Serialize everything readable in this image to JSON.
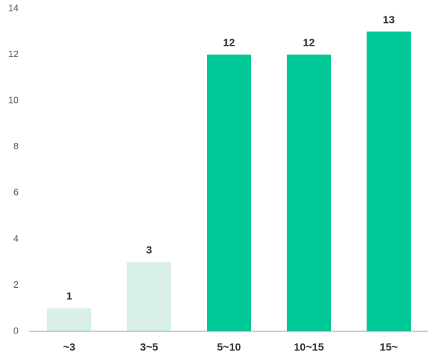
{
  "chart_data": {
    "type": "bar",
    "categories": [
      "~3",
      "3~5",
      "5~10",
      "10~15",
      "15~"
    ],
    "values": [
      1,
      3,
      12,
      12,
      13
    ],
    "colors": [
      "#d9f0e6",
      "#d9f0e6",
      "#00c896",
      "#00c896",
      "#00c896"
    ],
    "ylim": [
      0,
      14
    ],
    "yticks": [
      0,
      2,
      4,
      6,
      8,
      10,
      12,
      14
    ],
    "grid": false
  }
}
